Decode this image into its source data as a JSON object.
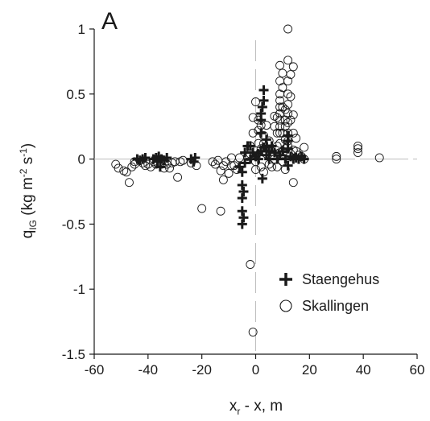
{
  "chart_data": {
    "type": "scatter",
    "panel_label": "A",
    "xlabel": {
      "main": "x",
      "sub": "r",
      "rest": " - x, m"
    },
    "ylabel": {
      "main": "q",
      "sub": "IG",
      "rest1": " (kg m",
      "sup1": "-2",
      "rest2": " s",
      "sup2": "-1",
      "rest3": ")"
    },
    "xlim": [
      -60,
      60
    ],
    "ylim": [
      -1.5,
      1
    ],
    "xticks": [
      -60,
      -40,
      -20,
      0,
      20,
      40,
      60
    ],
    "yticks": [
      -1.5,
      -1,
      -0.5,
      0,
      0.5,
      1
    ],
    "grid": false,
    "reference_lines": {
      "x": 0,
      "y": 0,
      "style": "dashed-light-gray"
    },
    "legend_position": "lower-right",
    "series": [
      {
        "name": "Staengehus",
        "marker": "plus",
        "color": "#1a1a1a",
        "points": [
          [
            -44,
            0.0
          ],
          [
            -43,
            -0.01
          ],
          [
            -42,
            0.0
          ],
          [
            -41,
            0.01
          ],
          [
            -38,
            0.0
          ],
          [
            -37,
            0.01
          ],
          [
            -36.5,
            -0.02
          ],
          [
            -36,
            0.02
          ],
          [
            -35.5,
            -0.06
          ],
          [
            -35,
            0.0
          ],
          [
            -34,
            -0.01
          ],
          [
            -33,
            0.01
          ],
          [
            -24,
            0.0
          ],
          [
            -23,
            -0.02
          ],
          [
            -22.5,
            0.01
          ],
          [
            -6,
            -0.06
          ],
          [
            -5,
            -0.1
          ],
          [
            -5,
            -0.2
          ],
          [
            -5,
            -0.3
          ],
          [
            -5,
            -0.4
          ],
          [
            -5,
            -0.5
          ],
          [
            -4.5,
            -0.25
          ],
          [
            -4.5,
            -0.45
          ],
          [
            -4,
            -0.03
          ],
          [
            -4,
            0.05
          ],
          [
            -3,
            0.1
          ],
          [
            -2,
            0.1
          ],
          [
            -2,
            0.0
          ],
          [
            -1,
            0.05
          ],
          [
            0,
            0.02
          ],
          [
            1,
            0.04
          ],
          [
            1,
            0.0
          ],
          [
            2,
            0.06
          ],
          [
            3,
            0.09
          ],
          [
            2.5,
            -0.15
          ],
          [
            2,
            0.2
          ],
          [
            2,
            0.3
          ],
          [
            2,
            0.35
          ],
          [
            2.5,
            0.4
          ],
          [
            3,
            0.45
          ],
          [
            3,
            0.53
          ],
          [
            4,
            0.1
          ],
          [
            4,
            0.15
          ],
          [
            4,
            0.03
          ],
          [
            5,
            0.0
          ],
          [
            5,
            0.06
          ],
          [
            6,
            0.1
          ],
          [
            7,
            0.05
          ],
          [
            8,
            0.0
          ],
          [
            9,
            0.03
          ],
          [
            10,
            0.06
          ],
          [
            11,
            0.0
          ],
          [
            12,
            0.08
          ],
          [
            12,
            0.14
          ],
          [
            12,
            0.18
          ],
          [
            12,
            -0.05
          ],
          [
            13,
            0.02
          ],
          [
            14,
            0.0
          ],
          [
            15,
            0.01
          ],
          [
            16,
            0.0
          ],
          [
            17,
            0.02
          ],
          [
            18,
            0.0
          ]
        ]
      },
      {
        "name": "Skallingen",
        "marker": "open-circle",
        "color": "#1a1a1a",
        "points": [
          [
            -52,
            -0.04
          ],
          [
            -51,
            -0.07
          ],
          [
            -49,
            -0.09
          ],
          [
            -48,
            -0.1
          ],
          [
            -47,
            -0.18
          ],
          [
            -46,
            -0.06
          ],
          [
            -45,
            -0.04
          ],
          [
            -45,
            -0.02
          ],
          [
            -42,
            -0.03
          ],
          [
            -41,
            -0.05
          ],
          [
            -40,
            -0.04
          ],
          [
            -39,
            -0.06
          ],
          [
            -38,
            -0.02
          ],
          [
            -37,
            -0.04
          ],
          [
            -35,
            -0.04
          ],
          [
            -34,
            -0.07
          ],
          [
            -33,
            -0.04
          ],
          [
            -32,
            -0.07
          ],
          [
            -31,
            -0.03
          ],
          [
            -30,
            -0.02
          ],
          [
            -29,
            -0.14
          ],
          [
            -28,
            -0.02
          ],
          [
            -27,
            -0.01
          ],
          [
            -24,
            -0.03
          ],
          [
            -22,
            -0.05
          ],
          [
            -16,
            -0.02
          ],
          [
            -15,
            -0.04
          ],
          [
            -14,
            -0.01
          ],
          [
            -13,
            -0.09
          ],
          [
            -12,
            -0.05
          ],
          [
            -12,
            -0.16
          ],
          [
            -11,
            -0.02
          ],
          [
            -10,
            -0.11
          ],
          [
            -9,
            -0.05
          ],
          [
            -9,
            0.01
          ],
          [
            -8,
            -0.05
          ],
          [
            -7,
            -0.08
          ],
          [
            -6,
            0.01
          ],
          [
            -20,
            -0.38
          ],
          [
            -13,
            -0.4
          ],
          [
            -2,
            -0.81
          ],
          [
            -1,
            -1.33
          ],
          [
            -3,
            0.02
          ],
          [
            -2,
            0.04
          ],
          [
            -2,
            0.1
          ],
          [
            -1,
            0.2
          ],
          [
            -1,
            0.32
          ],
          [
            0,
            0.44
          ],
          [
            0,
            -0.08
          ],
          [
            0,
            -0.02
          ],
          [
            1,
            0.12
          ],
          [
            1,
            0.22
          ],
          [
            1,
            0.3
          ],
          [
            2,
            0.26
          ],
          [
            2,
            0.08
          ],
          [
            2,
            -0.06
          ],
          [
            3,
            0.18
          ],
          [
            3,
            0.12
          ],
          [
            3,
            -0.1
          ],
          [
            4,
            0.26
          ],
          [
            4,
            0.04
          ],
          [
            5,
            0.14
          ],
          [
            5,
            -0.04
          ],
          [
            6,
            0.06
          ],
          [
            6,
            -0.06
          ],
          [
            7,
            0.33
          ],
          [
            7,
            0.25
          ],
          [
            7,
            0.0
          ],
          [
            8,
            0.1
          ],
          [
            8,
            0.32
          ],
          [
            8,
            0.2
          ],
          [
            8,
            -0.06
          ],
          [
            9,
            0.72
          ],
          [
            9,
            0.6
          ],
          [
            9,
            0.5
          ],
          [
            9,
            0.45
          ],
          [
            9,
            0.4
          ],
          [
            9,
            0.35
          ],
          [
            9,
            0.3
          ],
          [
            9,
            0.25
          ],
          [
            9,
            0.2
          ],
          [
            9,
            0.12
          ],
          [
            9,
            0.05
          ],
          [
            10,
            0.66
          ],
          [
            10,
            0.55
          ],
          [
            10,
            0.4
          ],
          [
            10,
            0.2
          ],
          [
            10,
            -0.02
          ],
          [
            11,
            0.38
          ],
          [
            11,
            0.3
          ],
          [
            11,
            0.25
          ],
          [
            11,
            0.15
          ],
          [
            11,
            0.08
          ],
          [
            11,
            -0.08
          ],
          [
            12,
            1.0
          ],
          [
            12,
            0.76
          ],
          [
            12,
            0.6
          ],
          [
            12,
            0.5
          ],
          [
            12,
            0.42
          ],
          [
            12,
            0.35
          ],
          [
            12,
            0.28
          ],
          [
            12,
            0.2
          ],
          [
            12,
            0.14
          ],
          [
            12,
            0.1
          ],
          [
            13,
            0.65
          ],
          [
            13,
            0.48
          ],
          [
            13,
            0.3
          ],
          [
            13,
            0.04
          ],
          [
            14,
            0.71
          ],
          [
            14,
            0.34
          ],
          [
            14,
            0.2
          ],
          [
            14,
            0.07
          ],
          [
            14,
            -0.18
          ],
          [
            15,
            0.16
          ],
          [
            15,
            0.06
          ],
          [
            16,
            0.03
          ],
          [
            17,
            0.02
          ],
          [
            18,
            0.09
          ],
          [
            18,
            0.0
          ],
          [
            30,
            0.0
          ],
          [
            30,
            0.02
          ],
          [
            38,
            0.05
          ],
          [
            38,
            0.08
          ],
          [
            38,
            0.1
          ],
          [
            46,
            0.01
          ]
        ]
      }
    ]
  }
}
